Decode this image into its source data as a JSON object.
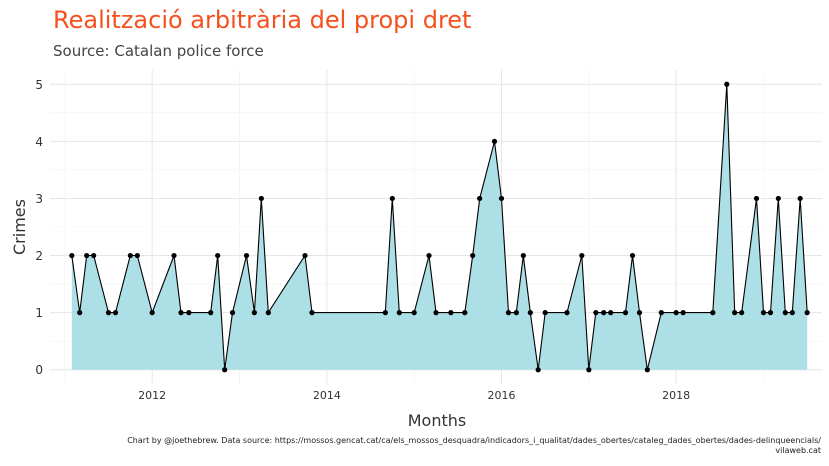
{
  "chart_data": {
    "type": "area",
    "title": "Realització arbitrària del propi dret",
    "subtitle": "Source: Catalan police force",
    "xlabel": "Months",
    "ylabel": "Crimes",
    "caption_line1": "Chart by @joethebrew. Data source: https://mossos.gencat.cat/ca/els_mossos_desquadra/indicadors_i_qualitat/dades_obertes/cataleg_dades_obertes/dades-delinqueencials/",
    "caption_line2": "vilaweb.cat",
    "xlim": [
      2010.83,
      2019.67
    ],
    "ylim": [
      -0.25,
      5.25
    ],
    "x_ticks": [
      2012,
      2014,
      2016,
      2018
    ],
    "y_ticks": [
      0,
      1,
      2,
      3,
      4,
      5
    ],
    "grid": true,
    "colors": {
      "fill": "#acdfe6",
      "line": "#000000",
      "point": "#000000",
      "title": "#f4511e",
      "grid": "#e6e6e6"
    },
    "points": [
      [
        2011.08,
        2
      ],
      [
        2011.17,
        1
      ],
      [
        2011.25,
        2
      ],
      [
        2011.33,
        2
      ],
      [
        2011.5,
        1
      ],
      [
        2011.58,
        1
      ],
      [
        2011.75,
        2
      ],
      [
        2011.83,
        2
      ],
      [
        2012.0,
        1
      ],
      [
        2012.25,
        2
      ],
      [
        2012.33,
        1
      ],
      [
        2012.42,
        1
      ],
      [
        2012.67,
        1
      ],
      [
        2012.75,
        2
      ],
      [
        2012.83,
        0
      ],
      [
        2012.92,
        1
      ],
      [
        2013.08,
        2
      ],
      [
        2013.17,
        1
      ],
      [
        2013.25,
        3
      ],
      [
        2013.33,
        1
      ],
      [
        2013.75,
        2
      ],
      [
        2013.83,
        1
      ],
      [
        2014.67,
        1
      ],
      [
        2014.75,
        3
      ],
      [
        2014.83,
        1
      ],
      [
        2015.0,
        1
      ],
      [
        2015.17,
        2
      ],
      [
        2015.25,
        1
      ],
      [
        2015.42,
        1
      ],
      [
        2015.58,
        1
      ],
      [
        2015.67,
        2
      ],
      [
        2015.75,
        3
      ],
      [
        2015.92,
        4
      ],
      [
        2016.0,
        3
      ],
      [
        2016.08,
        1
      ],
      [
        2016.17,
        1
      ],
      [
        2016.25,
        2
      ],
      [
        2016.33,
        1
      ],
      [
        2016.42,
        0
      ],
      [
        2016.5,
        1
      ],
      [
        2016.75,
        1
      ],
      [
        2016.92,
        2
      ],
      [
        2017.0,
        0
      ],
      [
        2017.08,
        1
      ],
      [
        2017.17,
        1
      ],
      [
        2017.25,
        1
      ],
      [
        2017.42,
        1
      ],
      [
        2017.5,
        2
      ],
      [
        2017.58,
        1
      ],
      [
        2017.67,
        0
      ],
      [
        2017.83,
        1
      ],
      [
        2018.0,
        1
      ],
      [
        2018.08,
        1
      ],
      [
        2018.42,
        1
      ],
      [
        2018.58,
        5
      ],
      [
        2018.67,
        1
      ],
      [
        2018.75,
        1
      ],
      [
        2018.92,
        3
      ],
      [
        2019.0,
        1
      ],
      [
        2019.08,
        1
      ],
      [
        2019.17,
        3
      ],
      [
        2019.25,
        1
      ],
      [
        2019.33,
        1
      ],
      [
        2019.42,
        3
      ],
      [
        2019.5,
        1
      ]
    ]
  }
}
